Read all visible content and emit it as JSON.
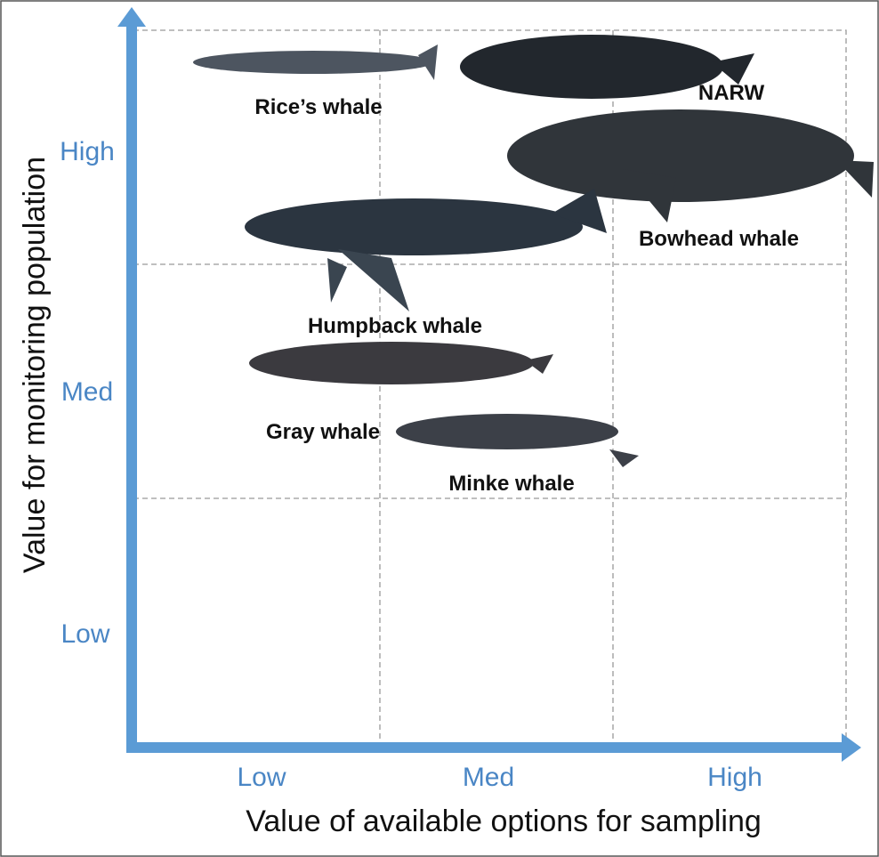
{
  "axes": {
    "y_title": "Value for monitoring population",
    "x_title": "Value of available options for sampling",
    "y_ticks": [
      "High",
      "Med",
      "Low"
    ],
    "x_ticks": [
      "Low",
      "Med",
      "High"
    ]
  },
  "whales": [
    {
      "label": "Rice’s whale"
    },
    {
      "label": "NARW"
    },
    {
      "label": "Bowhead whale"
    },
    {
      "label": "Humpback whale"
    },
    {
      "label": "Gray whale"
    },
    {
      "label": "Minke whale"
    }
  ]
}
